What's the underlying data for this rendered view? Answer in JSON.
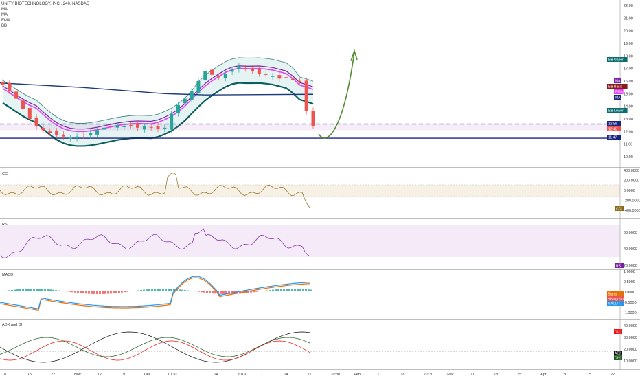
{
  "header": {
    "title": "UNITY BIOTECHNOLOGY, INC., 240, NASDAQ",
    "indicators": [
      "MA",
      "MA",
      "EMA",
      "BB"
    ]
  },
  "price_axis": {
    "ticks": [
      "22.00",
      "21.00",
      "20.00",
      "19.00",
      "18.00",
      "17.00",
      "16.00",
      "15.00",
      "14.00",
      "13.00",
      "12.00",
      "11.00",
      "10.00"
    ],
    "badges": [
      {
        "label": "BB Upper",
        "color": "#0b6e6e"
      },
      {
        "label": "MA",
        "color": "#7b1fa2"
      },
      {
        "label": "BB Basis",
        "color": "#8b1a1a"
      },
      {
        "label": "EMA",
        "color": "#e040fb"
      },
      {
        "label": "MA",
        "color": "#1a237e"
      },
      {
        "label": "BB Lower",
        "color": "#0b6e6e"
      },
      {
        "label": "12.59",
        "color": "#1a237e"
      },
      {
        "label": "12.45",
        "color": "#ef5350"
      },
      {
        "label": "11.47",
        "color": "#1a237e"
      }
    ]
  },
  "cci": {
    "label": "CCI",
    "ticks": [
      "400.0000",
      "200.0000",
      "0.0000",
      "-200.0000",
      "-400.0000"
    ],
    "badge": {
      "label": "CCI",
      "color": "#8b6914"
    }
  },
  "rsi": {
    "label": "RSI",
    "ticks": [
      "60.0000",
      "40.0000",
      "20.0000"
    ],
    "badge": {
      "label": "RSI",
      "color": "#7b1fa2"
    }
  },
  "macd": {
    "label": "MACD",
    "ticks": [
      "1.0000",
      "0.5000",
      "0.0000",
      "-0.5000",
      "-1.0000"
    ],
    "badges": [
      {
        "label": "Signal",
        "color": "#ef6c00"
      },
      {
        "label": "Histogram",
        "color": "#ef5350"
      },
      {
        "label": "MACD",
        "color": "#2196f3"
      }
    ]
  },
  "adx": {
    "label": "ADX and DI",
    "ticks": [
      "40.0000",
      "30.0000",
      "20.0000",
      "10.0000"
    ],
    "badges": [
      {
        "label": "DI-",
        "color": "#ef1010"
      },
      {
        "label": "ADX",
        "color": "#111111"
      },
      {
        "label": "DI+",
        "color": "#1b5e20"
      }
    ]
  },
  "time_axis": {
    "labels": [
      "8",
      "15",
      "22",
      "Nov",
      "12",
      "19",
      "Dec",
      "10:30",
      "17",
      "24",
      "2019",
      "7",
      "14",
      "21",
      "10:30",
      "Feb",
      "11",
      "18",
      "10:30",
      "Mar",
      "11",
      "18",
      "25",
      "Apr",
      "8",
      "15",
      "22"
    ]
  },
  "chart_data": {
    "type": "candlestick",
    "price_levels": {
      "dashed_resistance": 12.59,
      "solid_support": 11.47,
      "last_close": 12.45
    },
    "ylim": [
      9.5,
      22.3
    ],
    "closes_approx": [
      15.7,
      15.2,
      14.6,
      13.8,
      13.0,
      12.4,
      12.1,
      11.9,
      11.7,
      11.6,
      11.5,
      11.6,
      11.7,
      11.9,
      12.1,
      12.3,
      12.4,
      12.5,
      12.4,
      12.5,
      12.3,
      12.4,
      12.3,
      12.2,
      12.3,
      13.4,
      14.1,
      14.6,
      15.2,
      16.0,
      16.8,
      16.5,
      16.3,
      16.6,
      16.9,
      17.2,
      17.0,
      16.8,
      16.6,
      16.5,
      16.4,
      16.2,
      16.3,
      16.1,
      15.9,
      13.6,
      12.45
    ],
    "projection": "upward arrow toward ~18.4 after the drop"
  }
}
